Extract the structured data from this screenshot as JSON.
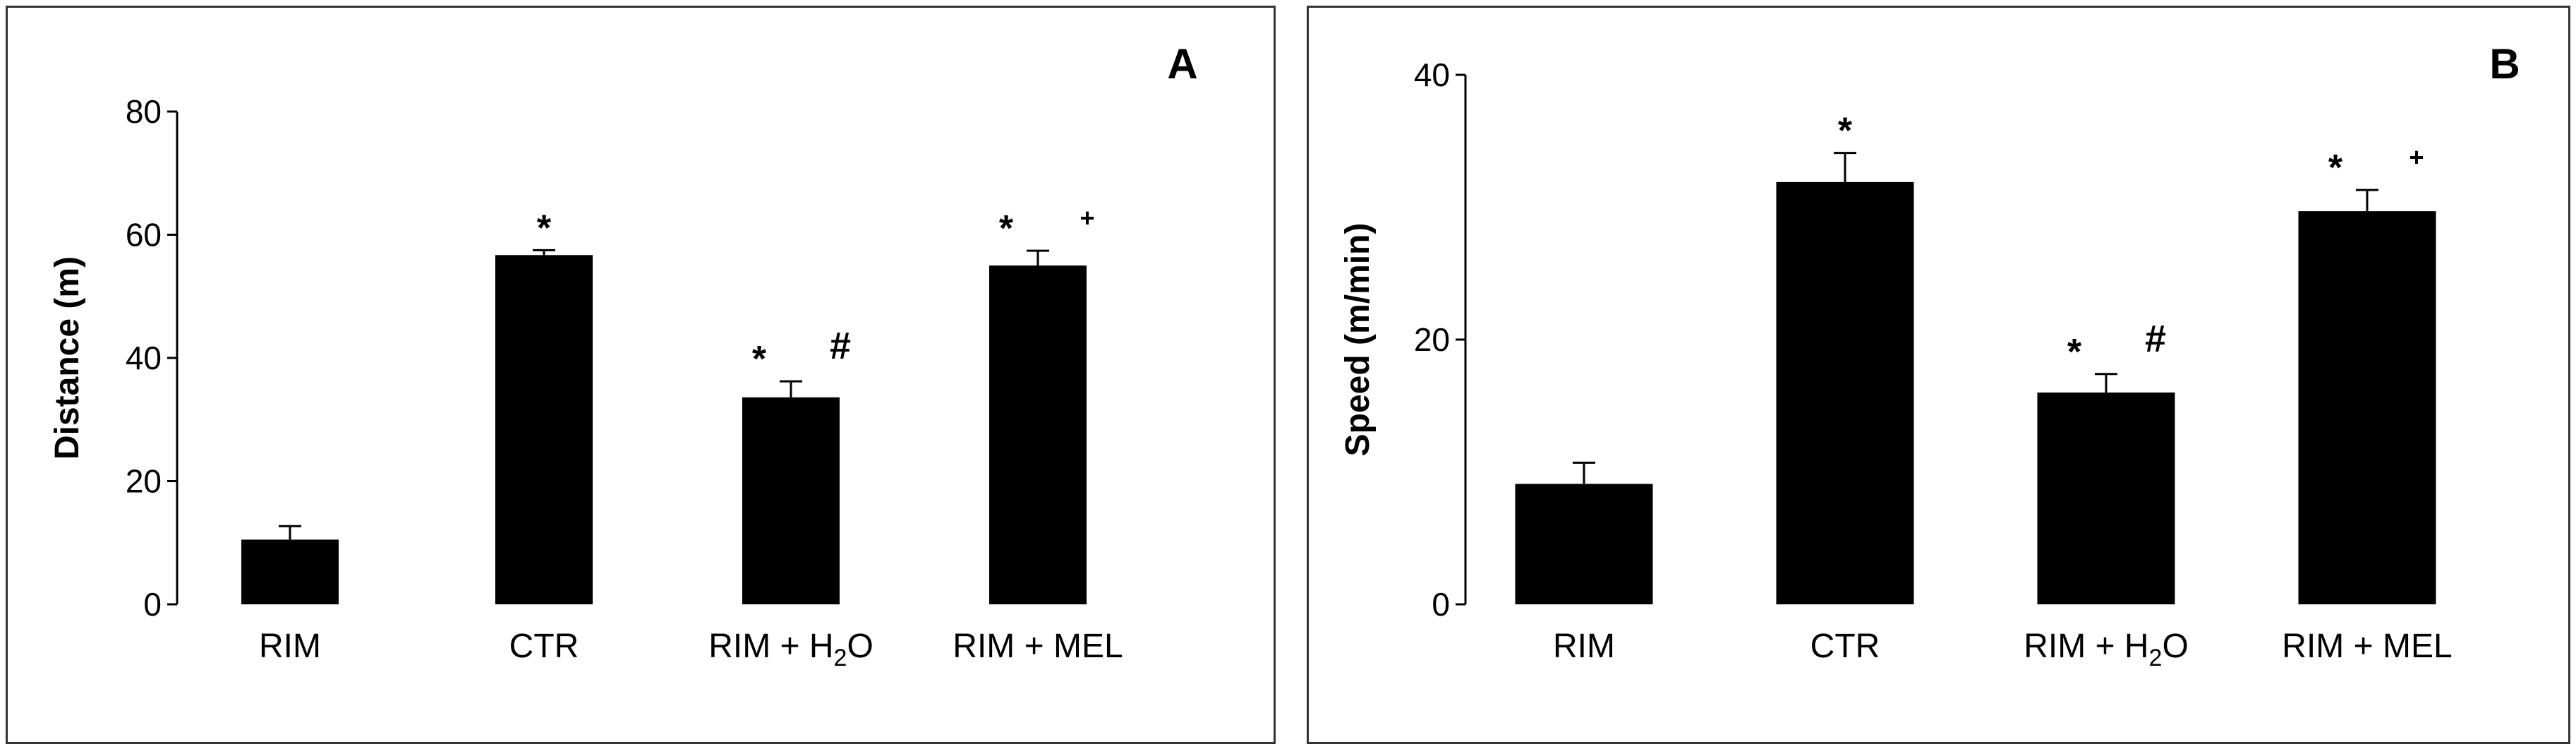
{
  "chart_data": [
    {
      "type": "bar",
      "panel_label": "A",
      "ylabel": "Distance (m)",
      "ylim": [
        0,
        80
      ],
      "yticks": [
        0,
        20,
        40,
        60,
        80
      ],
      "categories": [
        "RIM",
        "CTR",
        "RIM + H",
        "RIM + MEL"
      ],
      "category_subscripts": [
        "",
        "",
        "2",
        ""
      ],
      "category_suffixes": [
        "",
        "",
        "O",
        ""
      ],
      "values": [
        10.5,
        56.7,
        33.6,
        55.0
      ],
      "errors": [
        2.2,
        0.8,
        2.6,
        2.4
      ],
      "annotations": [
        {
          "category": "CTR",
          "marks": [
            "*"
          ]
        },
        {
          "category": "RIM + H2O",
          "marks": [
            "*",
            "#"
          ]
        },
        {
          "category": "RIM + MEL",
          "marks": [
            "*",
            "+"
          ]
        }
      ]
    },
    {
      "type": "bar",
      "panel_label": "B",
      "ylabel": "Speed (m/min)",
      "ylim": [
        0,
        40
      ],
      "yticks": [
        0,
        20,
        40
      ],
      "categories": [
        "RIM",
        "CTR",
        "RIM + H",
        "RIM + MEL"
      ],
      "category_subscripts": [
        "",
        "",
        "2",
        ""
      ],
      "category_suffixes": [
        "",
        "",
        "O",
        ""
      ],
      "values": [
        9.1,
        31.9,
        16.0,
        29.7
      ],
      "errors": [
        1.6,
        2.2,
        1.4,
        1.6
      ],
      "annotations": [
        {
          "category": "CTR",
          "marks": [
            "*"
          ]
        },
        {
          "category": "RIM + H2O",
          "marks": [
            "*",
            "#"
          ]
        },
        {
          "category": "RIM + MEL",
          "marks": [
            "*",
            "+"
          ]
        }
      ]
    }
  ]
}
